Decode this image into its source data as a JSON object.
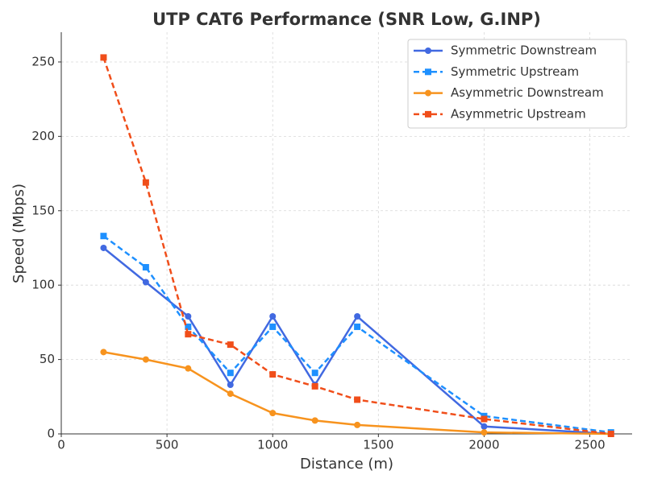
{
  "chart_data": {
    "type": "line",
    "title": "UTP CAT6 Performance (SNR Low, G.INP)",
    "x_label": "Distance (m)",
    "y_label": "Speed (Mbps)",
    "x": [
      200,
      400,
      600,
      800,
      1000,
      1200,
      1400,
      2000,
      2600
    ],
    "series": [
      {
        "name": "Symmetric Downstream",
        "color": "#4169e1",
        "dashed": false,
        "marker": "circle",
        "values": [
          125,
          102,
          79,
          33,
          79,
          33,
          79,
          5,
          0
        ]
      },
      {
        "name": "Symmetric Upstream",
        "color": "#1e90ff",
        "dashed": true,
        "marker": "square",
        "values": [
          133,
          112,
          72,
          41,
          72,
          41,
          72,
          12,
          1
        ]
      },
      {
        "name": "Asymmetric Downstream",
        "color": "#f7931e",
        "dashed": false,
        "marker": "circle",
        "values": [
          55,
          50,
          44,
          27,
          14,
          9,
          6,
          1,
          0
        ]
      },
      {
        "name": "Asymmetric Upstream",
        "color": "#f04e1a",
        "dashed": true,
        "marker": "square",
        "values": [
          253,
          169,
          67,
          60,
          40,
          32,
          23,
          10,
          0
        ]
      }
    ],
    "xlim": [
      0,
      2700
    ],
    "xticks": [
      0,
      500,
      1000,
      1500,
      2000,
      2500
    ],
    "ylim": [
      0,
      270
    ],
    "yticks": [
      0,
      50,
      100,
      150,
      200,
      250
    ],
    "grid": true,
    "legend": "upper right"
  }
}
